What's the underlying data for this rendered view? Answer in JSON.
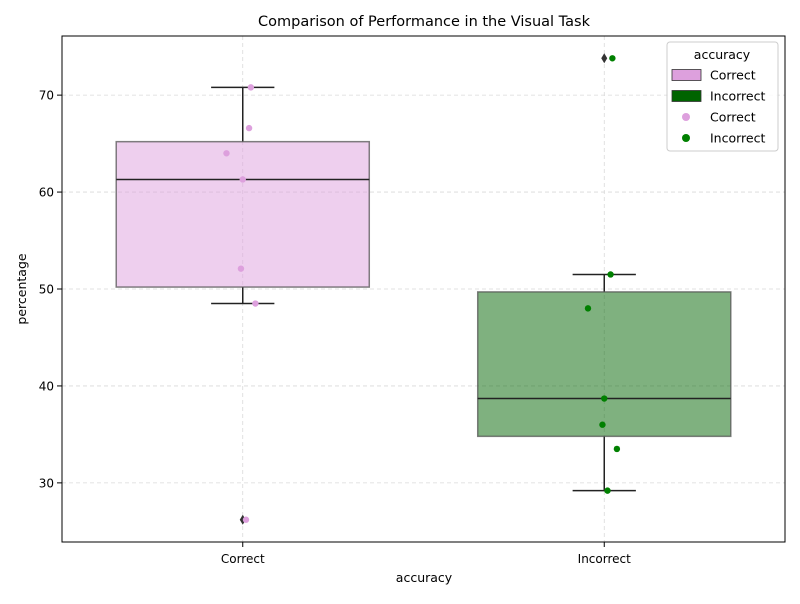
{
  "chart_data": {
    "type": "box",
    "title": "Comparison of Performance in the Visual Task",
    "xlabel": "accuracy",
    "ylabel": "percentage",
    "categories": [
      "Correct",
      "Incorrect"
    ],
    "ylim": [
      23.9,
      76.1
    ],
    "yticks": [
      30,
      40,
      50,
      60,
      70
    ],
    "grid": true,
    "boxes": [
      {
        "category": "Correct",
        "color": "#dda0dd",
        "whisker_low": 48.5,
        "q1": 50.2,
        "median": 61.3,
        "q3": 65.2,
        "whisker_high": 70.8,
        "outliers": [
          26.2
        ]
      },
      {
        "category": "Incorrect",
        "color": "#006400",
        "whisker_low": 29.2,
        "q1": 34.8,
        "median": 38.7,
        "q3": 49.7,
        "whisker_high": 51.5,
        "outliers": [
          73.8
        ]
      }
    ],
    "points": [
      {
        "category": "Correct",
        "color": "#dda0dd",
        "values": [
          70.8,
          66.6,
          64.0,
          61.3,
          52.1,
          48.5,
          26.2
        ]
      },
      {
        "category": "Incorrect",
        "color": "#008000",
        "values": [
          73.8,
          51.5,
          48.0,
          38.7,
          36.0,
          33.5,
          29.2
        ]
      }
    ],
    "legend": {
      "title": "accuracy",
      "placement": "top-right",
      "entries": [
        {
          "label": "Correct",
          "kind": "patch",
          "color": "#dda0dd"
        },
        {
          "label": "Incorrect",
          "kind": "patch",
          "color": "#006400"
        },
        {
          "label": "Correct",
          "kind": "marker",
          "color": "#dda0dd"
        },
        {
          "label": "Incorrect",
          "kind": "marker",
          "color": "#008000"
        }
      ]
    }
  }
}
